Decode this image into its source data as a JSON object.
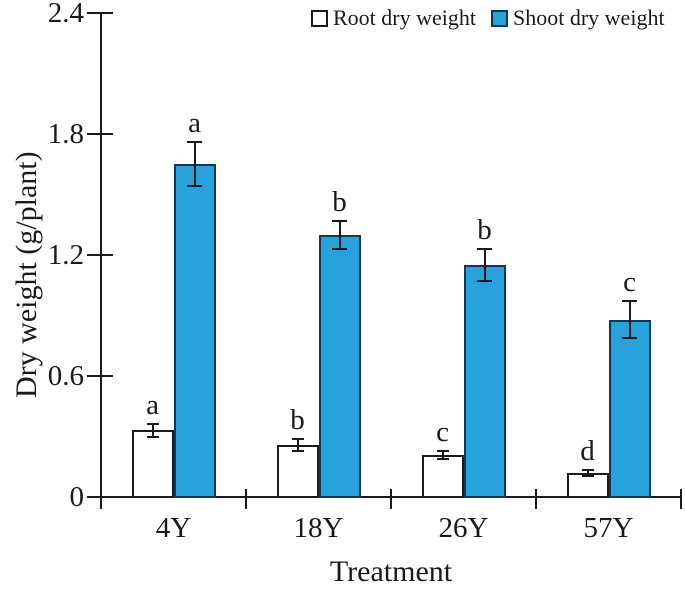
{
  "chart_data": {
    "type": "bar",
    "title": "",
    "xlabel": "Treatment",
    "ylabel": "Dry weight (g/plant)",
    "ylim": [
      0,
      2.4
    ],
    "yticks": [
      0,
      0.6,
      1.2,
      1.8,
      2.4
    ],
    "ytick_labels": [
      "0",
      "0.6",
      "1.2",
      "1.8",
      "2.4"
    ],
    "grid": false,
    "legend_position": "top",
    "error_bars": true,
    "categories": [
      "4Y",
      "18Y",
      "26Y",
      "57Y"
    ],
    "series": [
      {
        "name": "Root dry weight",
        "fill": "#ffffff",
        "edge": "#1a1a1a",
        "values": [
          0.33,
          0.26,
          0.21,
          0.12
        ],
        "errors": [
          0.03,
          0.03,
          0.02,
          0.015
        ],
        "sig_letters": [
          "a",
          "b",
          "c",
          "d"
        ]
      },
      {
        "name": "Shoot dry weight",
        "fill": "#29a2dc",
        "edge": "#16374f",
        "values": [
          1.65,
          1.3,
          1.15,
          0.88
        ],
        "errors": [
          0.11,
          0.07,
          0.08,
          0.09
        ],
        "sig_letters": [
          "a",
          "b",
          "b",
          "c"
        ]
      }
    ]
  }
}
